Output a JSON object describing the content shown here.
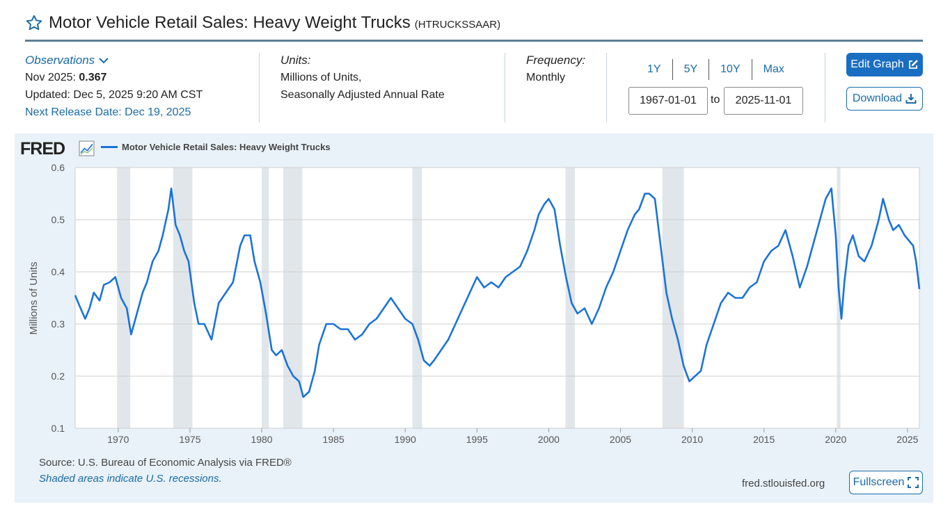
{
  "header": {
    "title": "Motor Vehicle Retail Sales: Heavy Weight Trucks",
    "series_code": "(HTRUCKSSAAR)",
    "icon": "star-icon"
  },
  "meta": {
    "observations_label": "Observations",
    "obs_period": "Nov 2025:",
    "obs_value": "0.367",
    "updated": "Updated: Dec 5, 2025 9:20 AM CST",
    "next_release": "Next Release Date: Dec 19, 2025",
    "units_label": "Units:",
    "units_line1": "Millions of Units,",
    "units_line2": "Seasonally Adjusted Annual Rate",
    "frequency_label": "Frequency:",
    "frequency_value": "Monthly"
  },
  "controls": {
    "range_buttons": [
      "1Y",
      "5Y",
      "10Y",
      "Max"
    ],
    "start_date": "1967-01-01",
    "to_label": "to",
    "end_date": "2025-11-01",
    "edit_graph_label": "Edit Graph",
    "download_label": "Download",
    "fullscreen_label": "Fullscreen"
  },
  "footer": {
    "source": "Source: U.S. Bureau of Economic Analysis via FRED®",
    "shaded_note": "Shaded areas indicate U.S. recessions.",
    "site": "fred.stlouisfed.org"
  },
  "colors": {
    "line": "#1a73d9",
    "accent": "#1a6ec2",
    "link": "#1a6aa8",
    "panel_bg": "#e9f2f9",
    "recession_band": "#e1e6ea"
  },
  "chart_data": {
    "type": "line",
    "logo": "FRED",
    "ylabel": "Millions of Units",
    "ylim": [
      0.1,
      0.6
    ],
    "yticks": [
      0.1,
      0.2,
      0.3,
      0.4,
      0.5,
      0.6
    ],
    "xlim": [
      1967.0,
      2025.83
    ],
    "xticks": [
      1970,
      1975,
      1980,
      1985,
      1990,
      1995,
      2000,
      2005,
      2010,
      2015,
      2020,
      2025
    ],
    "grid": true,
    "legend_position": "top-left",
    "recessions": [
      [
        1969.92,
        1970.83
      ],
      [
        1973.83,
        1975.17
      ],
      [
        1980.0,
        1980.5
      ],
      [
        1981.5,
        1982.83
      ],
      [
        1990.5,
        1991.17
      ],
      [
        2001.17,
        2001.83
      ],
      [
        2007.92,
        2009.42
      ],
      [
        2020.08,
        2020.33
      ]
    ],
    "series": [
      {
        "name": "Motor Vehicle Retail Sales: Heavy Weight Trucks",
        "x": [
          1967.0,
          1967.3,
          1967.7,
          1968.0,
          1968.3,
          1968.7,
          1969.0,
          1969.4,
          1969.8,
          1970.2,
          1970.6,
          1970.9,
          1971.3,
          1971.7,
          1972.0,
          1972.4,
          1972.8,
          1973.1,
          1973.5,
          1973.7,
          1974.0,
          1974.3,
          1974.6,
          1974.9,
          1975.3,
          1975.6,
          1976.0,
          1976.5,
          1977.0,
          1977.5,
          1978.0,
          1978.5,
          1978.8,
          1979.2,
          1979.5,
          1979.9,
          1980.3,
          1980.7,
          1981.0,
          1981.4,
          1981.8,
          1982.2,
          1982.6,
          1982.9,
          1983.3,
          1983.7,
          1984.0,
          1984.5,
          1985.0,
          1985.5,
          1986.0,
          1986.5,
          1987.0,
          1987.5,
          1988.0,
          1988.5,
          1989.0,
          1989.5,
          1990.0,
          1990.5,
          1990.9,
          1991.3,
          1991.7,
          1992.0,
          1992.5,
          1993.0,
          1993.5,
          1994.0,
          1994.5,
          1995.0,
          1995.5,
          1996.0,
          1996.5,
          1997.0,
          1997.5,
          1998.0,
          1998.5,
          1999.0,
          1999.3,
          1999.7,
          2000.0,
          2000.4,
          2000.8,
          2001.2,
          2001.6,
          2002.0,
          2002.5,
          2003.0,
          2003.5,
          2004.0,
          2004.5,
          2005.0,
          2005.5,
          2006.0,
          2006.3,
          2006.7,
          2007.0,
          2007.4,
          2007.8,
          2008.2,
          2008.6,
          2009.0,
          2009.4,
          2009.8,
          2010.2,
          2010.6,
          2011.0,
          2011.5,
          2012.0,
          2012.5,
          2013.0,
          2013.5,
          2014.0,
          2014.5,
          2015.0,
          2015.5,
          2016.0,
          2016.5,
          2017.0,
          2017.5,
          2018.0,
          2018.5,
          2019.0,
          2019.3,
          2019.7,
          2020.0,
          2020.2,
          2020.4,
          2020.6,
          2020.9,
          2021.2,
          2021.6,
          2022.0,
          2022.5,
          2023.0,
          2023.3,
          2023.7,
          2024.0,
          2024.4,
          2024.8,
          2025.1,
          2025.4,
          2025.6,
          2025.83
        ],
        "values": [
          0.355,
          0.335,
          0.31,
          0.33,
          0.36,
          0.345,
          0.375,
          0.38,
          0.39,
          0.35,
          0.33,
          0.28,
          0.32,
          0.36,
          0.38,
          0.42,
          0.44,
          0.47,
          0.52,
          0.56,
          0.49,
          0.47,
          0.44,
          0.42,
          0.34,
          0.3,
          0.3,
          0.27,
          0.34,
          0.36,
          0.38,
          0.45,
          0.47,
          0.47,
          0.42,
          0.38,
          0.32,
          0.25,
          0.24,
          0.25,
          0.22,
          0.2,
          0.19,
          0.16,
          0.17,
          0.21,
          0.26,
          0.3,
          0.3,
          0.29,
          0.29,
          0.27,
          0.28,
          0.3,
          0.31,
          0.33,
          0.35,
          0.33,
          0.31,
          0.3,
          0.27,
          0.23,
          0.22,
          0.23,
          0.25,
          0.27,
          0.3,
          0.33,
          0.36,
          0.39,
          0.37,
          0.38,
          0.37,
          0.39,
          0.4,
          0.41,
          0.44,
          0.48,
          0.51,
          0.53,
          0.54,
          0.52,
          0.45,
          0.39,
          0.34,
          0.32,
          0.33,
          0.3,
          0.33,
          0.37,
          0.4,
          0.44,
          0.48,
          0.51,
          0.52,
          0.55,
          0.55,
          0.54,
          0.45,
          0.36,
          0.31,
          0.27,
          0.22,
          0.19,
          0.2,
          0.21,
          0.26,
          0.3,
          0.34,
          0.36,
          0.35,
          0.35,
          0.37,
          0.38,
          0.42,
          0.44,
          0.45,
          0.48,
          0.43,
          0.37,
          0.41,
          0.46,
          0.51,
          0.54,
          0.56,
          0.47,
          0.37,
          0.31,
          0.38,
          0.45,
          0.47,
          0.43,
          0.42,
          0.45,
          0.5,
          0.54,
          0.5,
          0.48,
          0.49,
          0.47,
          0.46,
          0.45,
          0.42,
          0.367
        ]
      }
    ]
  }
}
